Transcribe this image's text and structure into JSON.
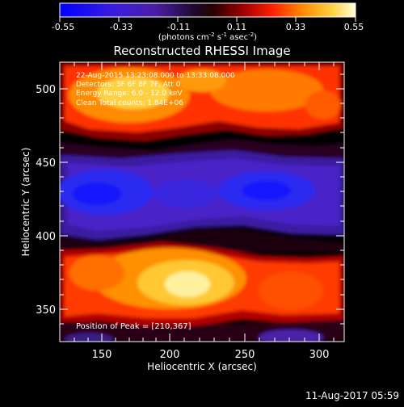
{
  "colorbar": {
    "tick_labels": [
      "-0.55",
      "-0.33",
      "-0.11",
      "0.11",
      "0.33",
      "0.55"
    ],
    "units_prefix": "(photons cm",
    "units_exp1": "-2",
    "units_mid": " s",
    "units_exp2": "-1",
    "units_suffix": " asec",
    "units_exp3": "-2",
    "units_close": ")"
  },
  "plot": {
    "title": "Reconstructed RHESSI Image",
    "xlabel": "Heliocentric X (arcsec)",
    "ylabel": "Heliocentric Y (arcsec)",
    "x_ticks": [
      "150",
      "200",
      "250",
      "300"
    ],
    "y_ticks": [
      "350",
      "400",
      "450",
      "500"
    ],
    "xlim": [
      122,
      312
    ],
    "ylim": [
      323,
      520
    ]
  },
  "annotations": {
    "time_range": "22-Aug-2015 13:23:08.000 to 13:33:08.000",
    "detectors": "Detectors: 3F 6F 8F 7F, Att 0",
    "energy": "Energy Range: 6.0 - 12.0 keV",
    "method": "Clean     Total counts: 1.84E+06",
    "peak": "Position of Peak = [210,367]"
  },
  "footer": {
    "timestamp": "11-Aug-2017 05:59"
  }
}
